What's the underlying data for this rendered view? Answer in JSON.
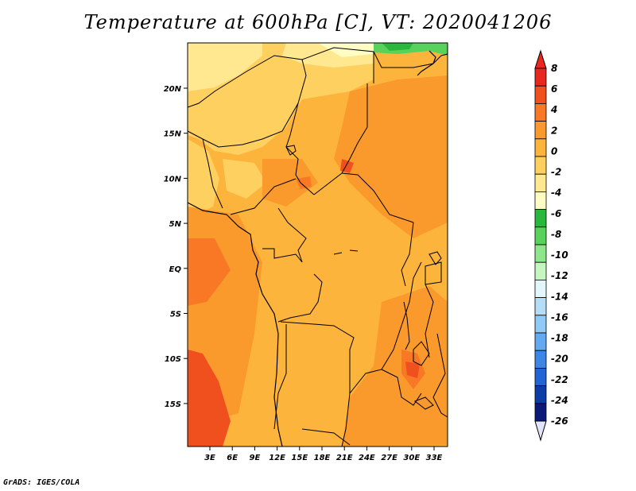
{
  "title": "Temperature at 600hPa [C], VT: 2020041206",
  "footer": "GrADS: IGES/COLA",
  "map": {
    "lat_ticks": [
      "20N",
      "15N",
      "10N",
      "5N",
      "EQ",
      "5S",
      "10S",
      "15S"
    ],
    "lon_ticks": [
      "3E",
      "6E",
      "9E",
      "12E",
      "15E",
      "18E",
      "21E",
      "24E",
      "27E",
      "30E",
      "33E"
    ]
  },
  "colorbar": {
    "labels": [
      "8",
      "6",
      "4",
      "2",
      "0",
      "-2",
      "-4",
      "-6",
      "-8",
      "-10",
      "-12",
      "-14",
      "-16",
      "-18",
      "-20",
      "-22",
      "-24",
      "-26"
    ],
    "colors": [
      "#e8281e",
      "#f0501e",
      "#f87826",
      "#fa9a2c",
      "#fdb43c",
      "#fed060",
      "#ffe890",
      "#fffcc4",
      "#2ab83c",
      "#58d25a",
      "#8ee68a",
      "#c6f6c0",
      "#e2f6fb",
      "#b4def8",
      "#90c8f6",
      "#64aaf0",
      "#3c86e6",
      "#2264d6",
      "#0c3ca6",
      "#0a1a78"
    ],
    "top_arrow_color": "#e8281e",
    "bottom_arrow_color": "#e2e4fa"
  }
}
